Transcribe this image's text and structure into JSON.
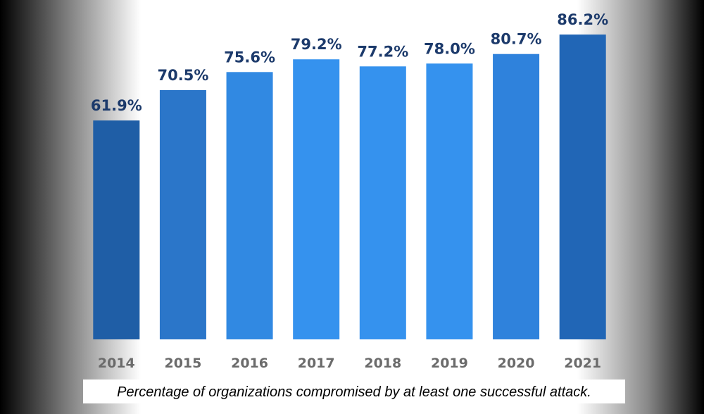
{
  "chart_data": {
    "type": "bar",
    "categories": [
      "2014",
      "2015",
      "2016",
      "2017",
      "2018",
      "2019",
      "2020",
      "2021"
    ],
    "values": [
      61.9,
      70.5,
      75.6,
      79.2,
      77.2,
      78.0,
      80.7,
      86.2
    ],
    "value_labels": [
      "61.9%",
      "70.5%",
      "75.6%",
      "79.2%",
      "77.2%",
      "78.0%",
      "80.7%",
      "86.2%"
    ],
    "colors": [
      "#1f5ea6",
      "#2b76c9",
      "#3189e2",
      "#3592ee",
      "#3592ee",
      "#3592ee",
      "#2f82dc",
      "#2166b6"
    ],
    "ylim": [
      0,
      90
    ],
    "caption": "Percentage of organizations compromised by at least one successful attack."
  }
}
